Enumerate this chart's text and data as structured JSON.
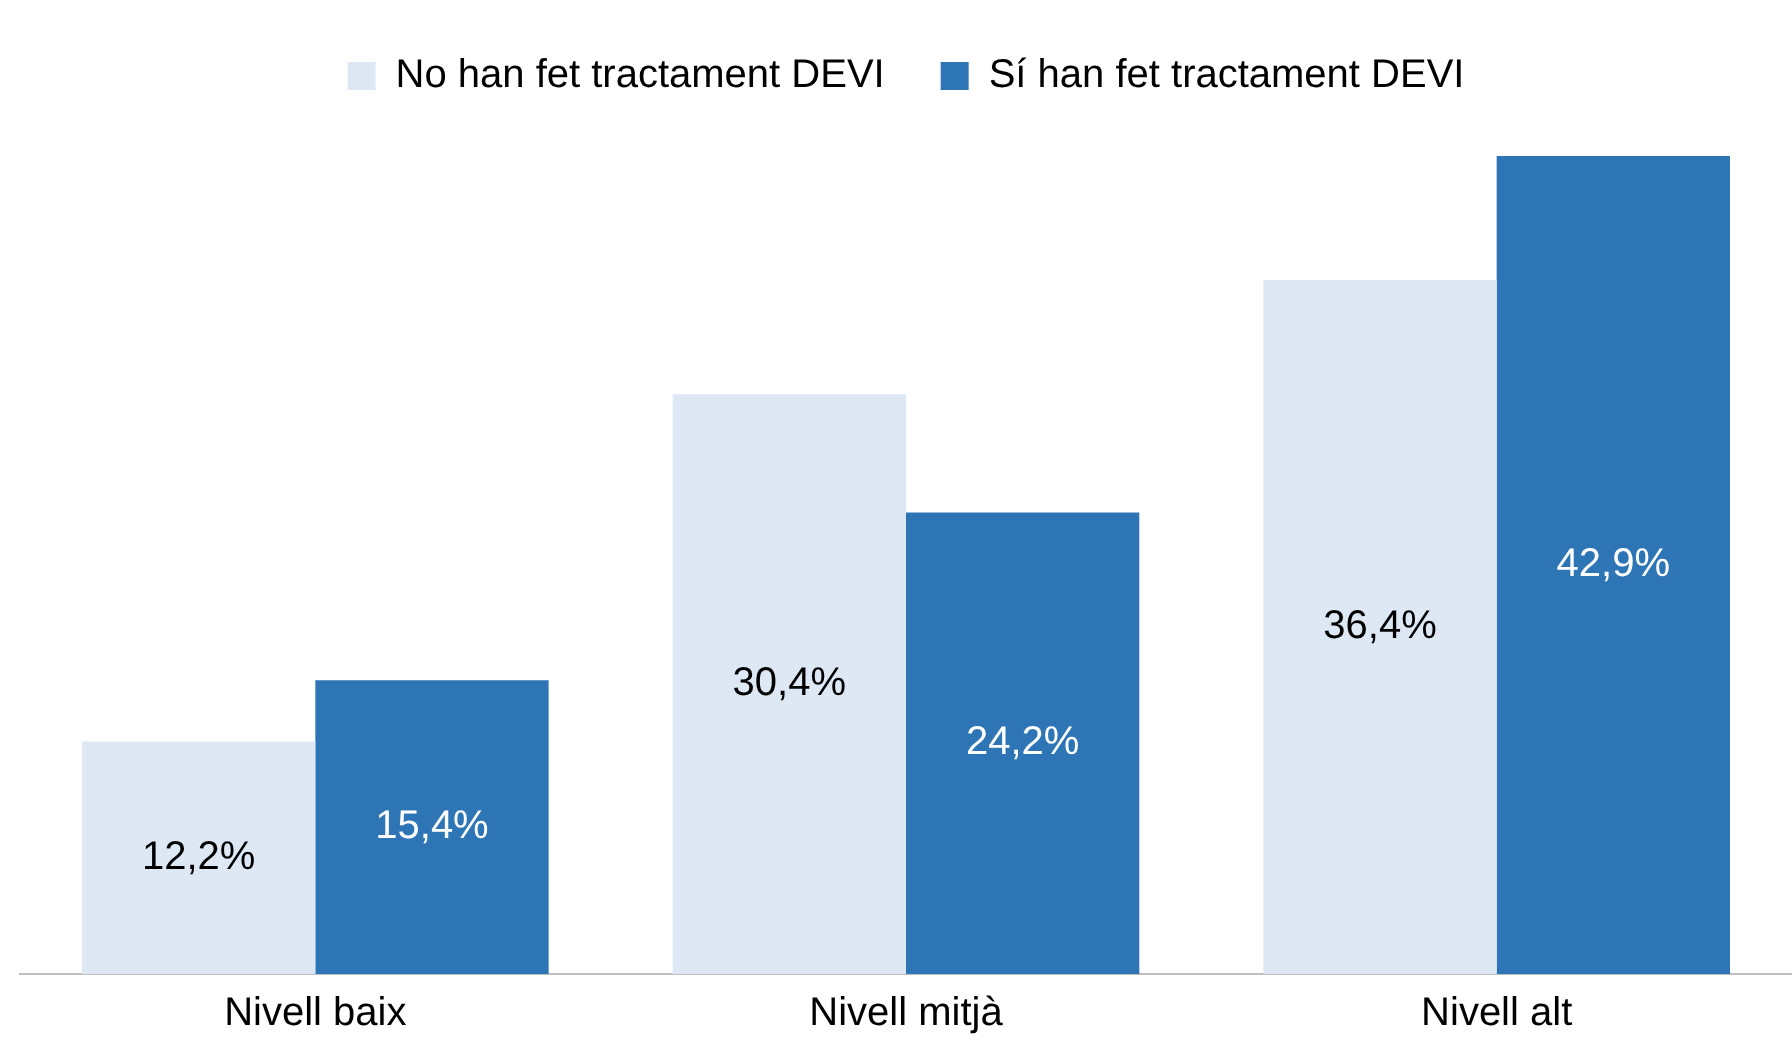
{
  "chart_data": {
    "type": "bar",
    "categories": [
      "Nivell baix",
      "Nivell mitjà",
      "Nivell alt"
    ],
    "series": [
      {
        "name": "No han fet tractament DEVI",
        "color": "#dde8f4",
        "values": [
          12.2,
          30.4,
          36.4
        ],
        "value_labels": [
          "12,2%",
          "30,4%",
          "36,4%"
        ]
      },
      {
        "name": "Sí han fet tractament DEVI",
        "color": "#2e75b6",
        "values": [
          15.4,
          24.2,
          42.9
        ],
        "value_labels": [
          "15,4%",
          "24,2%",
          "42,9%"
        ]
      }
    ],
    "legend": "top",
    "grid": false,
    "tick_labels": "x"
  }
}
